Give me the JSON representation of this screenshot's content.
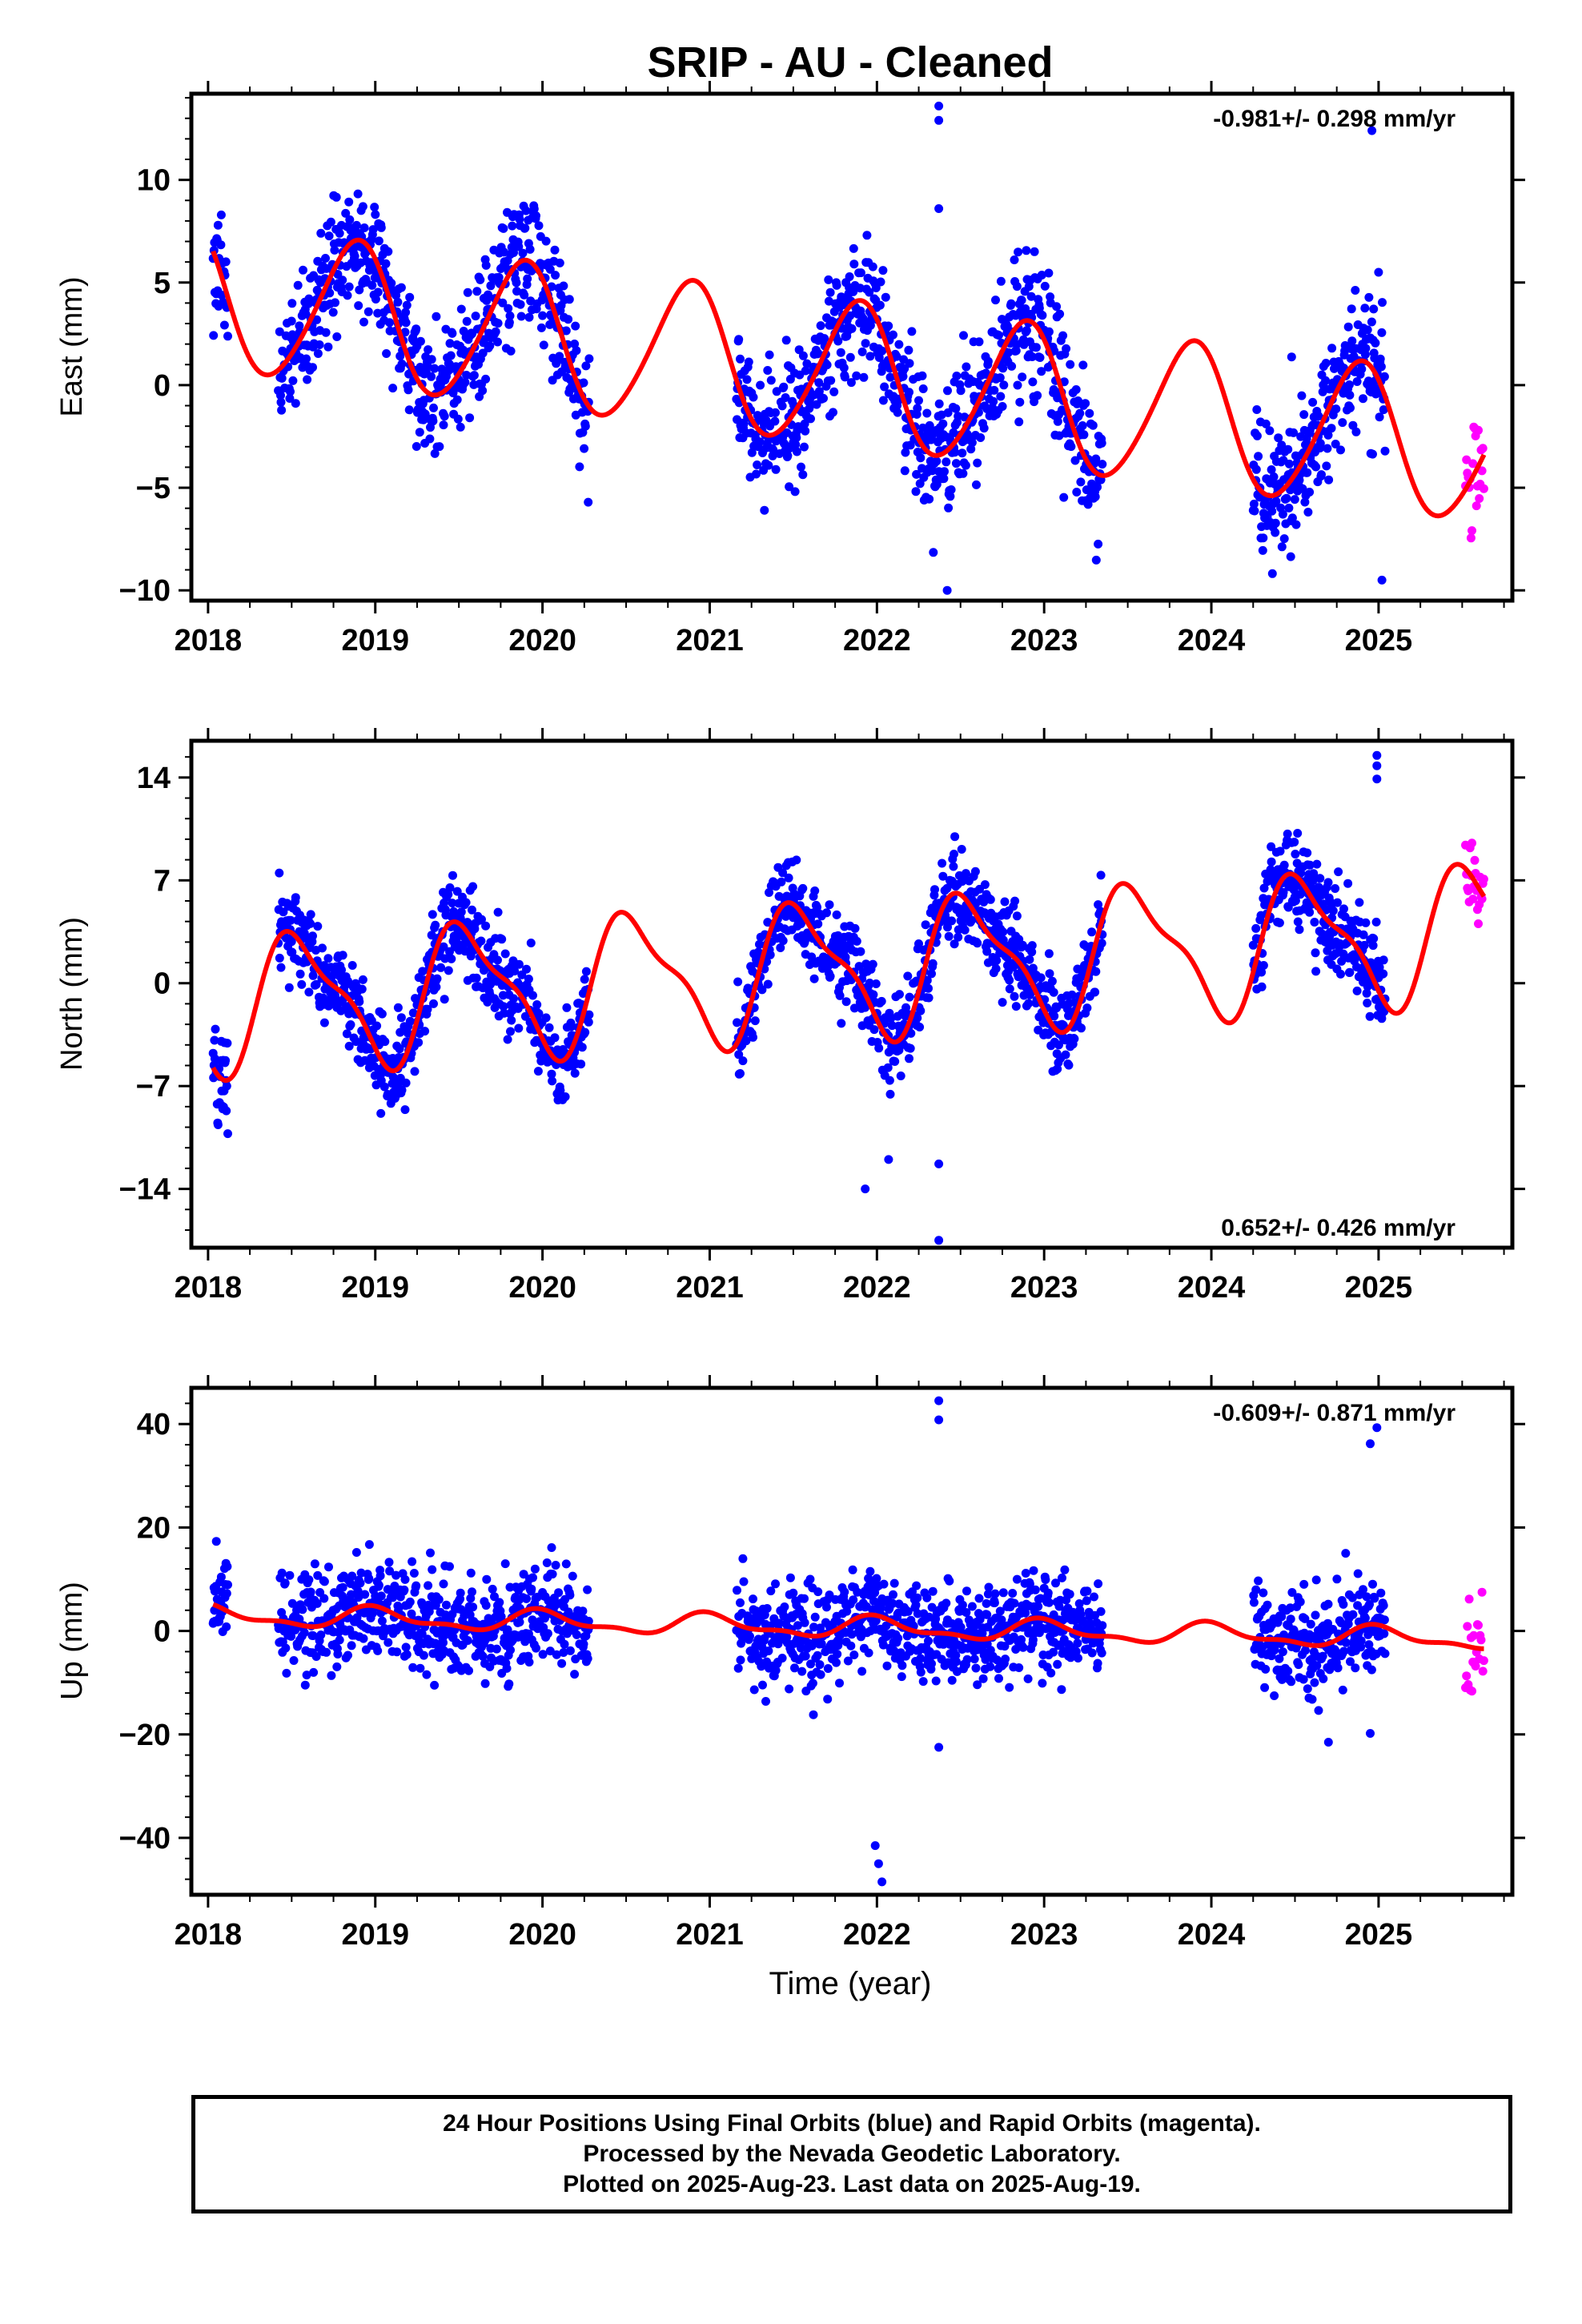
{
  "title": "SRIP  - AU - Cleaned",
  "colors": {
    "final": "#0000ff",
    "rapid": "#ff00ff",
    "model": "#ff0000"
  },
  "chart_data": [
    {
      "type": "scatter",
      "component": "east",
      "ylabel": "East (mm)",
      "xlabel": "",
      "rate_text": "-0.981+/- 0.298 mm/yr",
      "xlim": [
        2017.9,
        2025.8
      ],
      "ylim": [
        -10.5,
        14.2
      ],
      "yticks": [
        -10,
        -5,
        0,
        5,
        10
      ],
      "xticks": [
        2018,
        2019,
        2020,
        2021,
        2022,
        2023,
        2024,
        2025
      ],
      "data_segments": [
        [
          2018.03,
          2018.12
        ],
        [
          2018.42,
          2020.28
        ],
        [
          2021.16,
          2023.35
        ],
        [
          2024.25,
          2025.04
        ]
      ],
      "rapid_range": [
        2025.52,
        2025.63
      ],
      "model": {
        "offset": 4.25,
        "rate": -0.981,
        "ann_amp": 3.5,
        "ann_peak": 2018.88,
        "semi_amp": 0.35,
        "semi_phase": 0.4
      },
      "noise": 1.6,
      "outliers": [
        [
          2022.37,
          13.6
        ],
        [
          2022.37,
          12.9
        ],
        [
          2022.37,
          8.6
        ],
        [
          2024.96,
          12.4
        ],
        [
          2025.0,
          5.5
        ],
        [
          2025.02,
          -9.5
        ],
        [
          2022.42,
          -10.0
        ]
      ]
    },
    {
      "type": "scatter",
      "component": "north",
      "ylabel": "North (mm)",
      "xlabel": "",
      "rate_text": "0.652+/- 0.426 mm/yr",
      "xlim": [
        2017.9,
        2025.8
      ],
      "ylim": [
        -18.0,
        16.5
      ],
      "yticks": [
        -14,
        -7,
        0,
        7,
        14
      ],
      "xticks": [
        2018,
        2019,
        2020,
        2021,
        2022,
        2023,
        2024,
        2025
      ],
      "data_segments": [
        [
          2018.03,
          2018.12
        ],
        [
          2018.42,
          2020.28
        ],
        [
          2021.16,
          2023.35
        ],
        [
          2024.25,
          2025.04
        ]
      ],
      "rapid_range": [
        2025.52,
        2025.63
      ],
      "model": {
        "offset": -1.5,
        "rate": 0.652,
        "ann_amp": 4.3,
        "ann_peak": 2018.55,
        "semi_amp": 1.4,
        "semi_phase": 1.2
      },
      "noise": 1.5,
      "outliers": [
        [
          2024.99,
          15.5
        ],
        [
          2024.99,
          14.8
        ],
        [
          2024.99,
          13.9
        ],
        [
          2022.37,
          -12.3
        ],
        [
          2022.37,
          -17.5
        ],
        [
          2021.93,
          -14.0
        ],
        [
          2022.07,
          -12.0
        ]
      ]
    },
    {
      "type": "scatter",
      "component": "up",
      "ylabel": "Up (mm)",
      "xlabel": "Time (year)",
      "rate_text": "-0.609+/- 0.871 mm/yr",
      "xlim": [
        2017.9,
        2025.8
      ],
      "ylim": [
        -51.0,
        47.0
      ],
      "yticks": [
        -40,
        -20,
        0,
        20,
        40
      ],
      "xticks": [
        2018,
        2019,
        2020,
        2021,
        2022,
        2023,
        2024,
        2025
      ],
      "data_segments": [
        [
          2018.03,
          2018.12
        ],
        [
          2018.42,
          2020.28
        ],
        [
          2021.16,
          2023.35
        ],
        [
          2024.25,
          2025.04
        ]
      ],
      "rapid_range": [
        2025.52,
        2025.63
      ],
      "model": {
        "offset": 3.0,
        "rate": -0.609,
        "ann_amp": 1.8,
        "ann_peak": 2019.0,
        "semi_amp": 0.8,
        "semi_phase": 0.7
      },
      "noise": 4.5,
      "outliers": [
        [
          2022.37,
          44.5
        ],
        [
          2022.37,
          40.8
        ],
        [
          2024.99,
          39.3
        ],
        [
          2024.95,
          36.2
        ],
        [
          2022.03,
          -48.5
        ],
        [
          2022.01,
          -45.0
        ],
        [
          2021.99,
          -41.5
        ],
        [
          2022.37,
          -22.5
        ],
        [
          2024.95,
          -19.8
        ],
        [
          2024.7,
          -21.5
        ]
      ]
    }
  ],
  "footer": {
    "line1": "24 Hour Positions Using Final Orbits (blue) and Rapid Orbits (magenta).",
    "line2": "Processed by the Nevada Geodetic Laboratory.",
    "line3": "Plotted on 2025-Aug-23. Last data on 2025-Aug-19."
  }
}
